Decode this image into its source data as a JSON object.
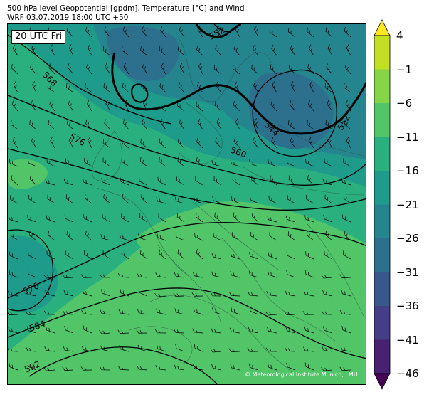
{
  "header": {
    "line1": "500 hPa level Geopotential [gpdm], Temperature [°C] and Wind",
    "line2": "WRF 03.07.2019 18:00 UTC +50"
  },
  "map": {
    "valid_time_label": "20 UTC Fri",
    "copyright": "© Meteorological Institute Munich, LMU",
    "contour_labels": [
      "552",
      "568",
      "576",
      "544",
      "560",
      "552",
      "576",
      "584",
      "592"
    ]
  },
  "colorbar": {
    "unit": "°C",
    "ticks": [
      "4",
      "−1",
      "−6",
      "−11",
      "−16",
      "−21",
      "−26",
      "−31",
      "−36",
      "−41",
      "−46"
    ],
    "colors": [
      "#fde725",
      "#c2df23",
      "#86d549",
      "#52c569",
      "#2ab07f",
      "#1e9b8a",
      "#25858e",
      "#2d708e",
      "#38588c",
      "#433e85",
      "#482173",
      "#440154"
    ]
  }
}
